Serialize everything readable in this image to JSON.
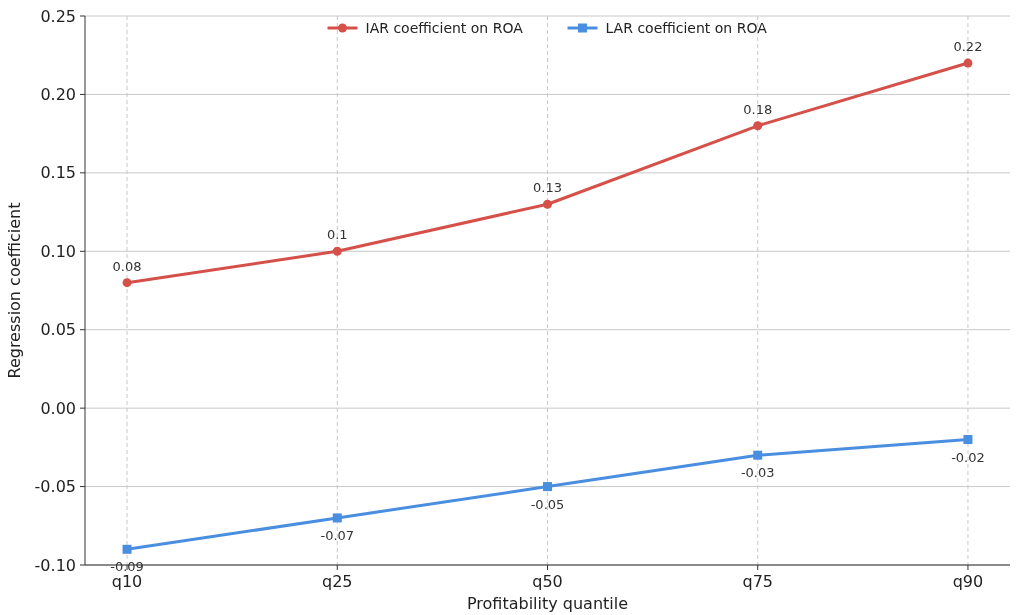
{
  "chart_data": {
    "type": "line",
    "xlabel": "Profitability quantile",
    "ylabel": "Regression coefficient",
    "categories": [
      "q10",
      "q25",
      "q50",
      "q75",
      "q90"
    ],
    "series": [
      {
        "name": "IAR coefficient on ROA",
        "color": "#d6504a",
        "marker": "circle",
        "values": [
          0.08,
          0.1,
          0.13,
          0.18,
          0.22
        ]
      },
      {
        "name": "LAR coefficient on ROA",
        "color": "#4a8ee0",
        "marker": "square",
        "values": [
          -0.09,
          -0.07,
          -0.05,
          -0.03,
          -0.02
        ]
      }
    ],
    "ylim": [
      -0.1,
      0.25
    ],
    "yticks": [
      {
        "value": -0.1,
        "label": "-0.10"
      },
      {
        "value": -0.05,
        "label": "-0.05"
      },
      {
        "value": 0,
        "label": "0.00"
      },
      {
        "value": 0.05,
        "label": "0.05"
      },
      {
        "value": 0.1,
        "label": "0.10"
      },
      {
        "value": 0.15,
        "label": "0.15"
      },
      {
        "value": 0.2,
        "label": "0.20"
      },
      {
        "value": 0.25,
        "label": "0.25"
      }
    ],
    "grid": true,
    "legend": "top",
    "data_labels": true,
    "line_style": "solid"
  }
}
